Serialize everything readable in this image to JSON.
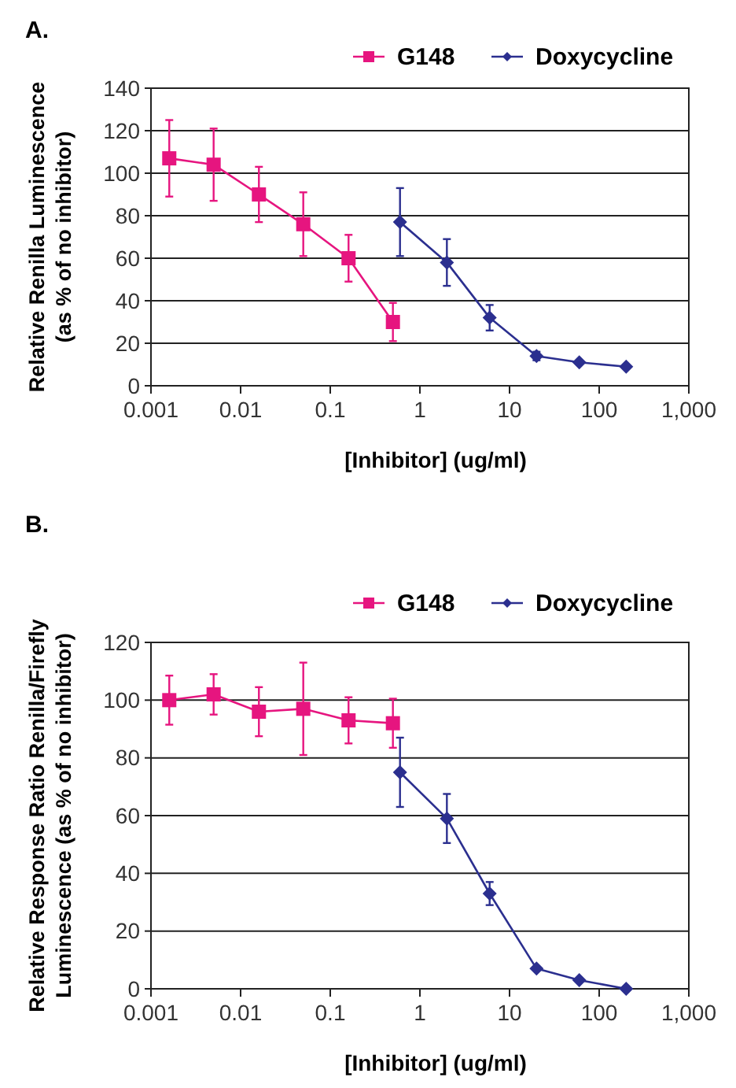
{
  "chart_data": [
    {
      "type": "line",
      "title": "A.",
      "xlabel": "[Inhibitor] (ug/ml)",
      "ylabel": "Relative Renilla Luminescence\n(as % of no inhibitor)",
      "log": "x",
      "grid": "y",
      "legend": "top right",
      "xlim": [
        0.001,
        1000
      ],
      "xticks": [
        0.001,
        0.01,
        0.1,
        1,
        10,
        100,
        {
          "value": 1000,
          "label": "1,000"
        }
      ],
      "ylim": [
        0,
        140
      ],
      "yticks": [
        0,
        20,
        40,
        60,
        80,
        100,
        120,
        140
      ],
      "series": [
        {
          "name": "G148",
          "color": "#e6157f",
          "marker": "square",
          "x": [
            0.0016,
            0.005,
            0.016,
            0.05,
            0.16,
            0.5
          ],
          "values": [
            107,
            104,
            90,
            76,
            60,
            30
          ],
          "errors": [
            18,
            17,
            13,
            15,
            11,
            9
          ]
        },
        {
          "name": "Doxycycline",
          "color": "#2b2f8f",
          "marker": "diamond",
          "x": [
            0.6,
            2,
            6,
            20,
            60,
            200
          ],
          "values": [
            77,
            58,
            32,
            14,
            11,
            9
          ],
          "errors": [
            16,
            11,
            6,
            2,
            null,
            null
          ]
        }
      ]
    },
    {
      "type": "line",
      "title": "B.",
      "xlabel": "[Inhibitor] (ug/ml)",
      "ylabel": "Relative Response Ratio Renilla/Firefly\nLuminescence (as % of no inhibitor)",
      "log": "x",
      "grid": "y",
      "legend": "top right",
      "xlim": [
        0.001,
        1000
      ],
      "xticks": [
        0.001,
        0.01,
        0.1,
        1,
        10,
        100,
        {
          "value": 1000,
          "label": "1,000"
        }
      ],
      "ylim": [
        0,
        120
      ],
      "yticks": [
        0,
        20,
        40,
        60,
        80,
        100,
        120
      ],
      "series": [
        {
          "name": "G148",
          "color": "#e6157f",
          "marker": "square",
          "x": [
            0.0016,
            0.005,
            0.016,
            0.05,
            0.16,
            0.5
          ],
          "values": [
            100,
            102,
            96,
            97,
            93,
            92
          ],
          "errors": [
            8.5,
            7,
            8.5,
            16,
            8,
            8.5
          ]
        },
        {
          "name": "Doxycycline",
          "color": "#2b2f8f",
          "marker": "diamond",
          "x": [
            0.6,
            2,
            6,
            20,
            60,
            200
          ],
          "values": [
            75,
            59,
            33,
            7,
            3,
            0
          ],
          "errors": [
            12,
            8.5,
            4,
            null,
            null,
            null
          ]
        }
      ]
    }
  ]
}
